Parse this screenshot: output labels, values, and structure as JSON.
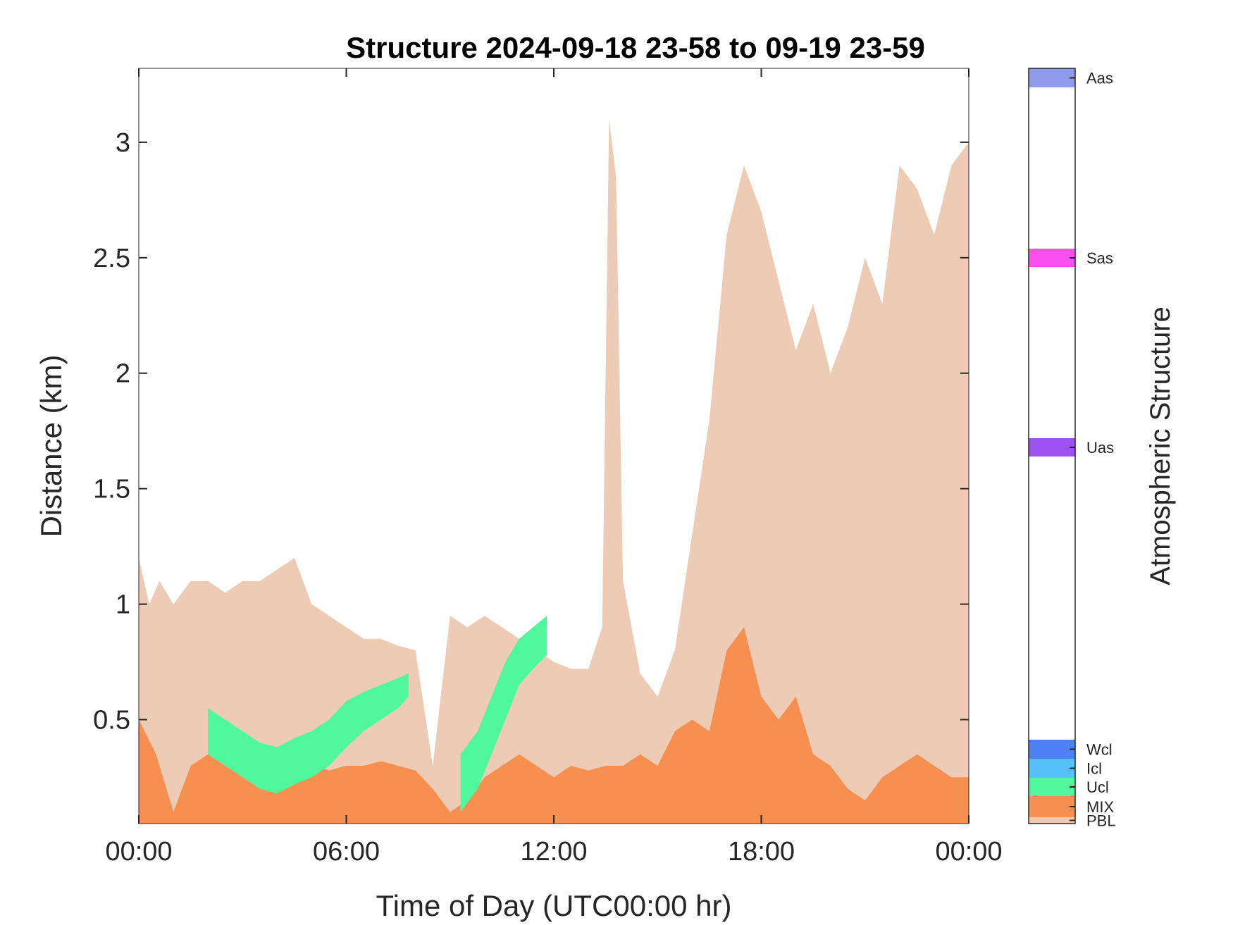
{
  "chart_data": {
    "type": "heatmap",
    "title": "Structure 2024-09-18 23-58 to 09-19 23-59",
    "xlabel": "Time of Day (UTC00:00 hr)",
    "ylabel": "Distance (km)",
    "xlim": [
      0,
      24
    ],
    "ylim": [
      0.05,
      3.32
    ],
    "x_ticks": [
      0,
      6,
      12,
      18,
      24
    ],
    "x_tick_labels": [
      "00:00",
      "06:00",
      "12:00",
      "18:00",
      "00:00"
    ],
    "y_ticks": [
      0.5,
      1,
      1.5,
      2,
      2.5,
      3
    ],
    "y_tick_labels": [
      "0.5",
      "1",
      "1.5",
      "2",
      "2.5",
      "3"
    ],
    "grid": false,
    "colorbar": {
      "title": "Atmospheric Structure",
      "classes": [
        {
          "name": "PBL",
          "color": "#EDCBB4"
        },
        {
          "name": "MIX",
          "color": "#F78F50"
        },
        {
          "name": "Ucl",
          "color": "#50F89C"
        },
        {
          "name": "Icl",
          "color": "#55C1F8"
        },
        {
          "name": "Wcl",
          "color": "#5080F5"
        },
        {
          "name": "Uas",
          "color": "#9E50F0"
        },
        {
          "name": "Sas",
          "color": "#FA50F0"
        },
        {
          "name": "Aas",
          "color": "#8E9AEB"
        }
      ]
    },
    "layers": {
      "pbl_top": {
        "hours": [
          0,
          0.3,
          0.6,
          1.0,
          1.5,
          2.0,
          2.5,
          3.0,
          3.5,
          4.0,
          4.5,
          5.0,
          5.5,
          6.0,
          6.5,
          7.0,
          7.5,
          8.0,
          8.5,
          9.0,
          9.5,
          10.0,
          10.5,
          11.0,
          11.5,
          12.0,
          12.5,
          13.0,
          13.4,
          13.6,
          13.8,
          14.0,
          14.5,
          15.0,
          15.5,
          16.0,
          16.5,
          17.0,
          17.5,
          18.0,
          18.5,
          19.0,
          19.5,
          20.0,
          20.5,
          21.0,
          21.5,
          22.0,
          22.5,
          23.0,
          23.5,
          24.0
        ],
        "km": [
          1.2,
          1.0,
          1.1,
          1.0,
          1.1,
          1.1,
          1.05,
          1.1,
          1.1,
          1.15,
          1.2,
          1.0,
          0.95,
          0.9,
          0.85,
          0.85,
          0.82,
          0.8,
          0.3,
          0.95,
          0.9,
          0.95,
          0.9,
          0.85,
          0.8,
          0.75,
          0.72,
          0.72,
          0.9,
          3.1,
          2.85,
          1.1,
          0.7,
          0.6,
          0.8,
          1.3,
          1.8,
          2.6,
          2.9,
          2.7,
          2.4,
          2.1,
          2.3,
          2.0,
          2.2,
          2.5,
          2.3,
          2.9,
          2.8,
          2.6,
          2.9,
          3.0
        ]
      },
      "mix_top": {
        "hours": [
          0,
          0.5,
          1.0,
          1.5,
          2.0,
          2.5,
          3.0,
          3.5,
          4.0,
          4.5,
          5.0,
          5.5,
          6.0,
          6.5,
          7.0,
          7.5,
          8.0,
          8.5,
          9.0,
          9.5,
          10.0,
          10.5,
          11.0,
          11.5,
          12.0,
          12.5,
          13.0,
          13.5,
          14.0,
          14.5,
          15.0,
          15.5,
          16.0,
          16.5,
          17.0,
          17.5,
          18.0,
          18.5,
          19.0,
          19.5,
          20.0,
          20.5,
          21.0,
          21.5,
          22.0,
          22.5,
          23.0,
          23.5,
          24.0
        ],
        "km": [
          0.5,
          0.35,
          0.1,
          0.3,
          0.35,
          0.3,
          0.3,
          0.32,
          0.3,
          0.35,
          0.3,
          0.28,
          0.3,
          0.3,
          0.32,
          0.3,
          0.28,
          0.2,
          0.1,
          0.15,
          0.25,
          0.3,
          0.35,
          0.3,
          0.25,
          0.3,
          0.28,
          0.3,
          0.3,
          0.35,
          0.3,
          0.45,
          0.5,
          0.45,
          0.8,
          0.9,
          0.6,
          0.5,
          0.6,
          0.35,
          0.3,
          0.2,
          0.15,
          0.25,
          0.3,
          0.35,
          0.3,
          0.25,
          0.25
        ]
      },
      "ucl_band": {
        "hours": [
          2.0,
          2.5,
          3.0,
          3.5,
          4.0,
          4.5,
          5.0,
          5.5,
          6.0,
          6.5,
          7.0,
          7.5,
          7.8
        ],
        "bottom_km": [
          0.35,
          0.3,
          0.25,
          0.2,
          0.18,
          0.22,
          0.25,
          0.3,
          0.38,
          0.45,
          0.5,
          0.55,
          0.6
        ],
        "top_km": [
          0.55,
          0.5,
          0.45,
          0.4,
          0.38,
          0.42,
          0.45,
          0.5,
          0.58,
          0.62,
          0.65,
          0.68,
          0.7
        ]
      },
      "ucl_band_2": {
        "hours": [
          9.3,
          9.8,
          10.2,
          10.6,
          11.0,
          11.4,
          11.8
        ],
        "bottom_km": [
          0.1,
          0.2,
          0.35,
          0.5,
          0.65,
          0.72,
          0.78
        ],
        "top_km": [
          0.35,
          0.45,
          0.6,
          0.75,
          0.85,
          0.9,
          0.95
        ]
      }
    }
  }
}
